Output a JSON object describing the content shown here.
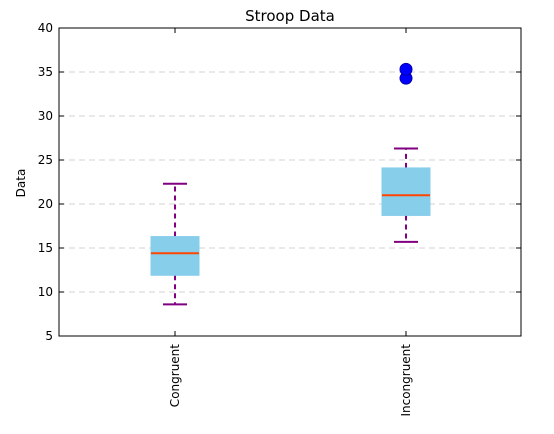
{
  "chart_data": {
    "type": "box",
    "title": "Stroop Data",
    "xlabel": "",
    "ylabel": "Data",
    "ylim": [
      5,
      40
    ],
    "yticks": [
      5,
      10,
      15,
      20,
      25,
      30,
      35,
      40
    ],
    "grid": "horizontal-dashed",
    "categories": [
      "Congruent",
      "Incongruent"
    ],
    "boxes": [
      {
        "category": "Congruent",
        "whisker_low": 8.6,
        "q1": 11.9,
        "median": 14.4,
        "q3": 16.3,
        "whisker_high": 22.3,
        "outliers": []
      },
      {
        "category": "Incongruent",
        "whisker_low": 15.7,
        "q1": 18.7,
        "median": 21.0,
        "q3": 24.1,
        "whisker_high": 26.3,
        "outliers": [
          34.3,
          35.3
        ]
      }
    ],
    "colors": {
      "box_fill": "#87ceeb",
      "median": "#ff4500",
      "whisker": "#800080",
      "outlier": "#0000ff",
      "grid": "#d3d3d3",
      "frame": "#000000"
    }
  }
}
